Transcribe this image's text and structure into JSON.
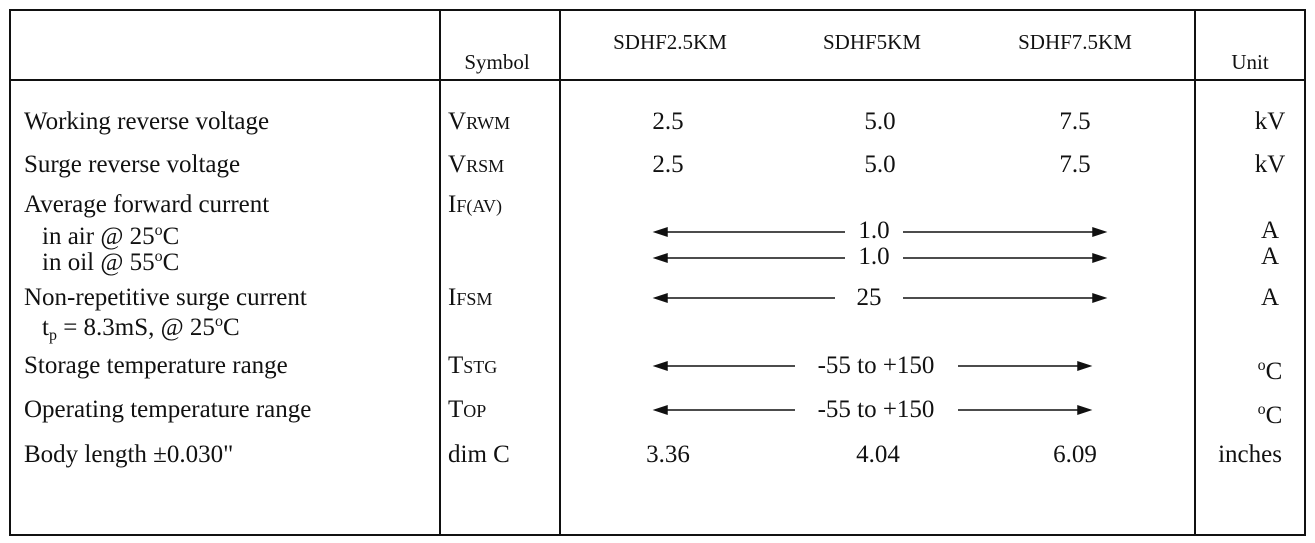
{
  "header": {
    "symbol": "Symbol",
    "models": [
      "SDHF2.5KM",
      "SDHF5KM",
      "SDHF7.5KM"
    ],
    "unit": "Unit"
  },
  "rows": [
    {
      "label": "Working reverse voltage",
      "symbol": {
        "main": "V",
        "sub": "RWM"
      },
      "values": [
        "2.5",
        "5.0",
        "7.5"
      ],
      "unit": "kV"
    },
    {
      "label": "Surge reverse voltage",
      "symbol": {
        "main": "V",
        "sub": "RSM"
      },
      "values": [
        "2.5",
        "5.0",
        "7.5"
      ],
      "unit": "kV"
    },
    {
      "label": "Average forward current",
      "symbol": {
        "main": "I",
        "sub": "F(AV)"
      },
      "conditions": [
        {
          "text": "in air @ 25",
          "deg": "o",
          "tail": "C",
          "value": "1.0",
          "unit": "A"
        },
        {
          "text": "in oil @ 55",
          "deg": "o",
          "tail": "C",
          "value": "1.0",
          "unit": "A"
        }
      ]
    },
    {
      "label": "Non-repetitive surge current",
      "condition": {
        "main": "t",
        "sub": "p",
        "text": " = 8.3mS, @ 25",
        "deg": "o",
        "tail": "C"
      },
      "symbol": {
        "main": "I",
        "sub": "FSM"
      },
      "value": "25",
      "unit": "A"
    },
    {
      "label": "Storage temperature range",
      "symbol": {
        "main": "T",
        "sub": "STG"
      },
      "value": "-55 to +150",
      "unit": {
        "deg": "o",
        "tail": "C"
      }
    },
    {
      "label": "Operating temperature range",
      "symbol": {
        "main": "T",
        "sub": "OP"
      },
      "value": "-55 to +150",
      "unit": {
        "deg": "o",
        "tail": "C"
      }
    },
    {
      "label": "Body length ±0.030\"",
      "symbol": "dim C",
      "values": [
        "3.36",
        "4.04",
        "6.09"
      ],
      "unit": "inches"
    }
  ]
}
